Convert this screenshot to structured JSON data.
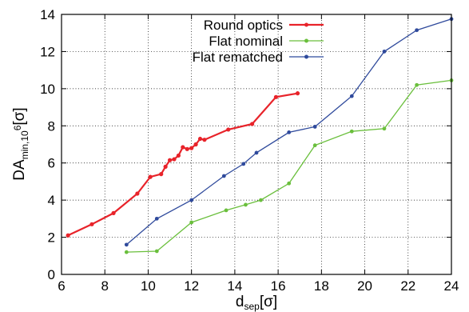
{
  "chart_data": {
    "type": "line",
    "title": "",
    "xlabel": {
      "main": "d",
      "sub": "sep",
      "suffix": "[σ]"
    },
    "ylabel": {
      "main": "DA",
      "sub": "min,10",
      "sup": "6",
      "suffix": "[σ]"
    },
    "xlim": [
      6,
      24
    ],
    "ylim": [
      0,
      14
    ],
    "xticks": [
      6,
      8,
      10,
      12,
      14,
      16,
      18,
      20,
      22,
      24
    ],
    "yticks": [
      0,
      2,
      4,
      6,
      8,
      10,
      12,
      14
    ],
    "grid": true,
    "legend_position": "top-center",
    "series": [
      {
        "name": "Round optics",
        "color": "#e8232a",
        "x": [
          6.3,
          7.4,
          8.4,
          9.5,
          10.1,
          10.6,
          10.8,
          11.0,
          11.2,
          11.4,
          11.6,
          11.8,
          12.0,
          12.2,
          12.4,
          12.6,
          13.7,
          14.8,
          15.9,
          16.9
        ],
        "y": [
          2.1,
          2.7,
          3.3,
          4.35,
          5.25,
          5.4,
          5.8,
          6.15,
          6.2,
          6.4,
          6.85,
          6.75,
          6.8,
          7.0,
          7.3,
          7.25,
          7.8,
          8.1,
          9.55,
          9.75
        ]
      },
      {
        "name": "Flat nominal",
        "color": "#6abf3c",
        "x": [
          9.0,
          10.4,
          12.0,
          13.6,
          14.5,
          15.2,
          16.5,
          17.7,
          19.4,
          20.9,
          22.4,
          24.0
        ],
        "y": [
          1.2,
          1.25,
          2.8,
          3.45,
          3.75,
          4.0,
          4.9,
          6.95,
          7.7,
          7.85,
          10.2,
          10.45
        ]
      },
      {
        "name": "Flat rematched",
        "color": "#2f4a9c",
        "x": [
          9.0,
          10.4,
          12.0,
          13.5,
          14.4,
          15.0,
          16.5,
          17.7,
          19.4,
          20.9,
          22.4,
          24.0
        ],
        "y": [
          1.6,
          3.0,
          4.0,
          5.3,
          5.95,
          6.55,
          7.65,
          7.95,
          9.6,
          12.0,
          13.15,
          13.75
        ]
      }
    ]
  }
}
